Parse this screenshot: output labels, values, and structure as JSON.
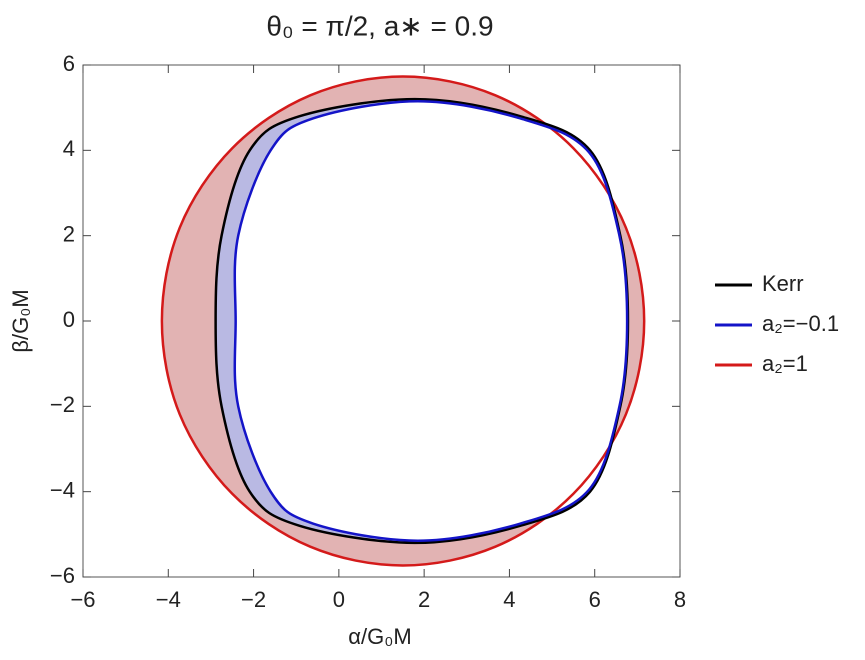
{
  "chart_data": {
    "type": "closed-curve",
    "title": "θ₀ = π/2,  a∗ = 0.9",
    "xlabel": "α/G₀M",
    "ylabel": "β/G₀M",
    "xlim": [
      -6,
      8
    ],
    "ylim": [
      -6,
      6
    ],
    "xticks": [
      {
        "value": -6,
        "label": "−6"
      },
      {
        "value": -4,
        "label": "−4"
      },
      {
        "value": -2,
        "label": "−2"
      },
      0,
      2,
      4,
      6,
      8
    ],
    "yticks": [
      {
        "value": -6,
        "label": "−6"
      },
      {
        "value": -4,
        "label": "−4"
      },
      {
        "value": -2,
        "label": "−2"
      },
      0,
      2,
      4,
      6
    ],
    "legend": "right",
    "series": [
      {
        "name": "a₂=1",
        "color": "#d41a1a",
        "fill": "#e2b3b3",
        "x": [
          1.5,
          3.67,
          5.5,
          6.73,
          7.16,
          6.73,
          5.5,
          3.67,
          1.5,
          -0.67,
          -2.5,
          -3.73,
          -4.15,
          -3.73,
          -2.5,
          -0.67
        ],
        "y": [
          5.73,
          5.29,
          4.05,
          2.19,
          0,
          -2.19,
          -4.05,
          -5.29,
          -5.73,
          -5.29,
          -4.05,
          -2.19,
          0,
          2.19,
          4.05,
          5.29
        ]
      },
      {
        "name": "Kerr",
        "color": "#000000",
        "fill": "#b9b9e3",
        "x": [
          1.78,
          4.25,
          5.89,
          6.6,
          6.78,
          6.6,
          5.89,
          4.25,
          1.78,
          -0.92,
          -2.09,
          -2.75,
          -2.89,
          -2.75,
          -2.09,
          -0.92
        ],
        "y": [
          5.2,
          4.8,
          4.0,
          2.0,
          0,
          -2.0,
          -4.0,
          -4.8,
          -5.2,
          -4.8,
          -4.0,
          -2.0,
          0,
          2.0,
          4.0,
          4.8
        ]
      },
      {
        "name": "a₂=−0.1",
        "color": "#1414c8",
        "fill": "#ffffff",
        "x": [
          1.85,
          4.25,
          5.87,
          6.58,
          6.76,
          6.58,
          5.87,
          4.25,
          1.85,
          -0.6,
          -1.6,
          -2.36,
          -2.42,
          -2.36,
          -1.6,
          -0.6
        ],
        "y": [
          5.15,
          4.75,
          3.95,
          2.0,
          0,
          -2.0,
          -3.95,
          -4.75,
          -5.15,
          -4.75,
          -4.0,
          -2.0,
          0,
          2.0,
          4.0,
          4.75
        ]
      }
    ],
    "legend_order": [
      1,
      2,
      0
    ]
  }
}
